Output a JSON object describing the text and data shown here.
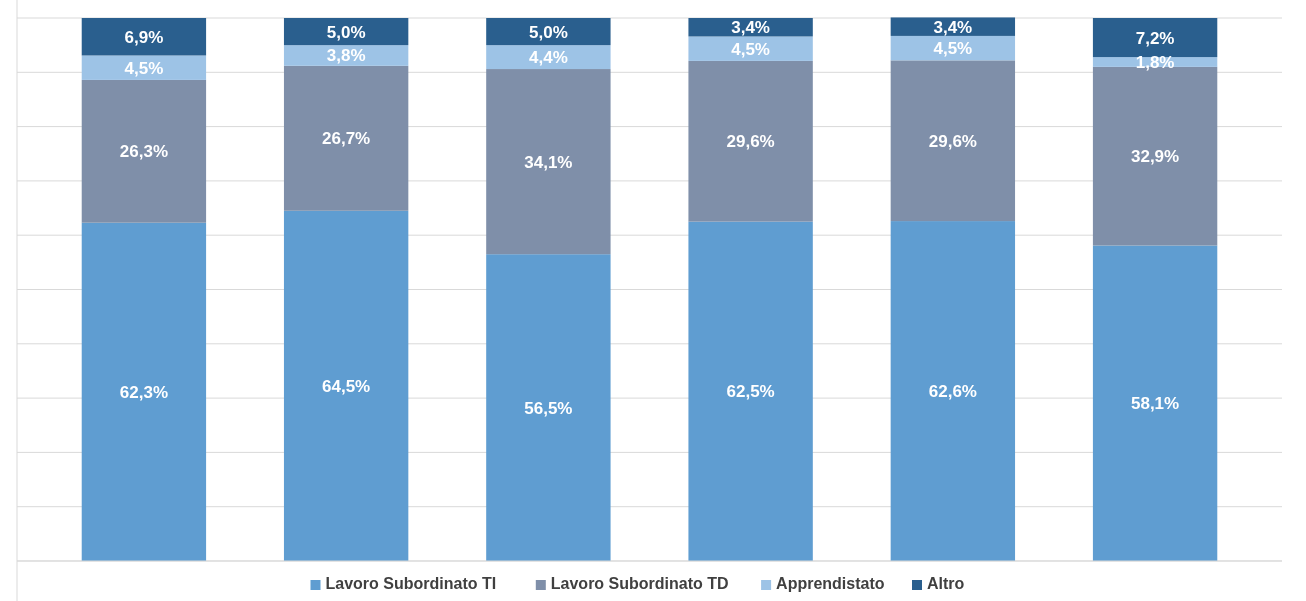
{
  "chart_data": {
    "type": "bar",
    "stacked": true,
    "categories": [
      null,
      null,
      null,
      null,
      null,
      null
    ],
    "series": [
      {
        "name": "Lavoro Subordinato TI",
        "color": "#5f9dd1",
        "values": [
          62.3,
          64.5,
          56.5,
          62.5,
          62.6,
          58.1
        ],
        "value_labels": [
          "62,3%",
          "64,5%",
          "56,5%",
          "62,5%",
          "62,6%",
          "58,1%"
        ]
      },
      {
        "name": "Lavoro Subordinato TD",
        "color": "#7f8fa9",
        "values": [
          26.3,
          26.7,
          34.1,
          29.6,
          29.6,
          32.9
        ],
        "value_labels": [
          "26,3%",
          "26,7%",
          "34,1%",
          "29,6%",
          "29,6%",
          "32,9%"
        ]
      },
      {
        "name": "Apprendistato",
        "color": "#9dc3e6",
        "values": [
          4.5,
          3.8,
          4.4,
          4.5,
          4.5,
          1.8
        ],
        "value_labels": [
          "4,5%",
          "3,8%",
          "4,4%",
          "4,5%",
          "4,5%",
          "1,8%"
        ]
      },
      {
        "name": "Altro",
        "color": "#2a5f8e",
        "values": [
          6.9,
          5.0,
          5.0,
          3.4,
          3.4,
          7.2
        ],
        "value_labels": [
          "6,9%",
          "5,0%",
          "5,0%",
          "3,4%",
          "3,4%",
          "7,2%"
        ]
      }
    ],
    "ylim": [
      0,
      100
    ],
    "yticks": [
      {
        "value": 0,
        "label": null
      },
      {
        "value": 10,
        "label": null
      },
      {
        "value": 20,
        "label": null
      },
      {
        "value": 30,
        "label": null
      },
      {
        "value": 40,
        "label": null
      },
      {
        "value": 50,
        "label": null
      },
      {
        "value": 60,
        "label": null
      },
      {
        "value": 70,
        "label": null
      },
      {
        "value": 80,
        "label": null
      },
      {
        "value": 90,
        "label": null
      },
      {
        "value": 100,
        "label": null
      }
    ],
    "grid": "y",
    "legend": "bottom"
  }
}
